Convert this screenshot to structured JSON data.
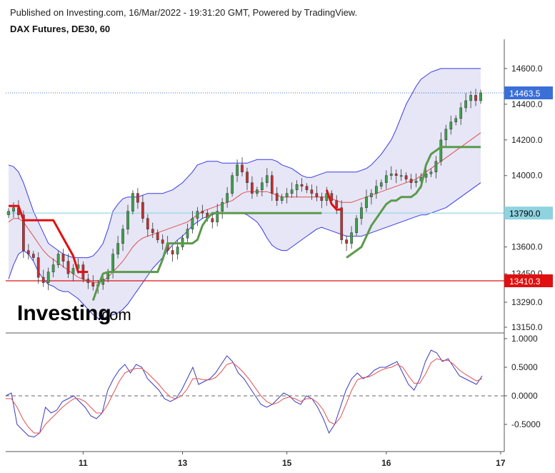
{
  "header": {
    "published": "Published on Investing.com, 16/Mar/2022 - 19:31:20 GMT, Powered by TradingView.",
    "title": "DAX Futures, DE30, 60"
  },
  "logo": {
    "text": "Investing",
    "suffix": ".com"
  },
  "colors": {
    "band_fill": "#dcdcf2",
    "band_line": "#3a3ae6",
    "ma_line": "#e05050",
    "stop_red": "#e01010",
    "stop_green": "#5a9a4a",
    "up_candle": "#3ea24a",
    "down_candle": "#c43030",
    "price_tag": "#3b6fd8",
    "level_cyan": "#8fd3e0",
    "level_red": "#e01010",
    "osc_fast": "#3a3ac0",
    "osc_slow": "#e05050"
  },
  "chart_data": [
    {
      "type": "candlestick",
      "title": "DAX Futures, DE30, 60",
      "ylim": [
        13150,
        14700
      ],
      "y_ticks": [
        "14600.0",
        "14400.0",
        "14200.0",
        "14000.0",
        "13600.0",
        "13450.0",
        "13290.0",
        "13150.0"
      ],
      "y_tick_values": [
        14600,
        14400,
        14200,
        14000,
        13600,
        13450,
        13290,
        13150
      ],
      "x_ticks": [
        "11",
        "13",
        "15",
        "16",
        "17"
      ],
      "x_tick_index": [
        15,
        35,
        56,
        76,
        99
      ],
      "n_bars": 96,
      "price_tags": [
        {
          "label": "14463.5",
          "value": 14463.5,
          "style": "last"
        },
        {
          "label": "13790.0",
          "value": 13790,
          "style": "cyan"
        },
        {
          "label": "13410.3",
          "value": 13410.3,
          "style": "red"
        }
      ],
      "closes": [
        13800,
        13820,
        13780,
        13580,
        13560,
        13540,
        13430,
        13400,
        13460,
        13500,
        13560,
        13520,
        13450,
        13480,
        13500,
        13420,
        13400,
        13380,
        13390,
        13420,
        13460,
        13560,
        13620,
        13700,
        13800,
        13900,
        13850,
        13760,
        13700,
        13680,
        13640,
        13620,
        13580,
        13560,
        13600,
        13650,
        13700,
        13760,
        13800,
        13790,
        13760,
        13740,
        13800,
        13850,
        13900,
        14000,
        14060,
        14020,
        13960,
        13900,
        13920,
        13960,
        14000,
        13900,
        13860,
        13880,
        13900,
        13920,
        13950,
        13940,
        13920,
        13900,
        13880,
        13860,
        13900,
        13860,
        13820,
        13640,
        13620,
        13680,
        13760,
        13820,
        13880,
        13900,
        13940,
        13960,
        14000,
        14010,
        14000,
        14000,
        13980,
        13960,
        13970,
        13990,
        14010,
        14020,
        14080,
        14200,
        14260,
        14300,
        14320,
        14380,
        14420,
        14450,
        14420,
        14463.5
      ],
      "series": [
        {
          "name": "",
          "kind": "band_upper",
          "values": [
            14060,
            14050,
            14020,
            13960,
            13880,
            13800,
            13740,
            13680,
            13620,
            13600,
            13580,
            13560,
            13550,
            13540,
            13540,
            13540,
            13540,
            13550,
            13580,
            13620,
            13700,
            13800,
            13840,
            13870,
            13880,
            13880,
            13880,
            13890,
            13900,
            13900,
            13900,
            13900,
            13910,
            13920,
            13940,
            13960,
            13990,
            14020,
            14060,
            14070,
            14080,
            14080,
            14080,
            14070,
            14070,
            14070,
            14070,
            14070,
            14070,
            14080,
            14090,
            14090,
            14090,
            14090,
            14080,
            14060,
            14050,
            14040,
            14020,
            14000,
            13990,
            13990,
            14000,
            14010,
            14020,
            14020,
            14020,
            14020,
            14020,
            14020,
            14020,
            14030,
            14040,
            14060,
            14090,
            14120,
            14160,
            14200,
            14260,
            14330,
            14400,
            14450,
            14500,
            14540,
            14560,
            14580,
            14590,
            14600,
            14600,
            14600,
            14600,
            14600,
            14600,
            14600,
            14600,
            14600
          ]
        },
        {
          "name": "",
          "kind": "band_lower",
          "values": [
            13420,
            13500,
            13560,
            13580,
            13560,
            13520,
            13460,
            13420,
            13390,
            13380,
            13360,
            13350,
            13350,
            13330,
            13310,
            13280,
            13250,
            13220,
            13200,
            13200,
            13210,
            13220,
            13230,
            13250,
            13280,
            13320,
            13360,
            13400,
            13440,
            13480,
            13510,
            13540,
            13580,
            13610,
            13640,
            13660,
            13690,
            13720,
            13740,
            13760,
            13770,
            13780,
            13790,
            13790,
            13790,
            13790,
            13790,
            13790,
            13780,
            13760,
            13740,
            13700,
            13650,
            13610,
            13590,
            13580,
            13580,
            13600,
            13620,
            13640,
            13660,
            13680,
            13700,
            13710,
            13700,
            13690,
            13680,
            13670,
            13660,
            13660,
            13660,
            13660,
            13670,
            13680,
            13690,
            13700,
            13710,
            13720,
            13730,
            13740,
            13750,
            13760,
            13770,
            13780,
            13780,
            13790,
            13800,
            13810,
            13820,
            13840,
            13860,
            13880,
            13900,
            13920,
            13940,
            13960
          ]
        },
        {
          "name": "",
          "kind": "ma",
          "values": [
            13740,
            13760,
            13760,
            13740,
            13700,
            13660,
            13620,
            13580,
            13550,
            13530,
            13510,
            13490,
            13470,
            13450,
            13430,
            13420,
            13410,
            13400,
            13400,
            13410,
            13430,
            13460,
            13490,
            13520,
            13560,
            13600,
            13630,
            13650,
            13660,
            13670,
            13680,
            13690,
            13700,
            13710,
            13720,
            13730,
            13740,
            13760,
            13780,
            13800,
            13810,
            13820,
            13830,
            13840,
            13850,
            13860,
            13880,
            13900,
            13910,
            13910,
            13910,
            13910,
            13910,
            13900,
            13890,
            13880,
            13880,
            13880,
            13880,
            13880,
            13880,
            13880,
            13880,
            13880,
            13880,
            13870,
            13860,
            13850,
            13850,
            13850,
            13860,
            13870,
            13880,
            13890,
            13900,
            13910,
            13920,
            13930,
            13940,
            13950,
            13960,
            13970,
            13980,
            14000,
            14020,
            14040,
            14060,
            14080,
            14100,
            14120,
            14140,
            14160,
            14180,
            14200,
            14220,
            14240
          ]
        },
        {
          "name": "",
          "kind": "stop_red",
          "values": [
            13830,
            13830,
            13830,
            13750,
            13750,
            13750,
            13750,
            13750,
            13750,
            13750,
            13700,
            13650,
            13600,
            13550,
            13460,
            13460,
            13460,
            null,
            null,
            null,
            null,
            null,
            null,
            null,
            null,
            null,
            null,
            null,
            null,
            null,
            null,
            null,
            null,
            null,
            null,
            null,
            null,
            null,
            null,
            null,
            null,
            null,
            null,
            null,
            null,
            null,
            null,
            null,
            null,
            null,
            null,
            null,
            null,
            null,
            null,
            null,
            null,
            null,
            null,
            null,
            null,
            null,
            null,
            null,
            13920,
            13840,
            13810,
            13810,
            null,
            null,
            null,
            null,
            null,
            null,
            null,
            null,
            null,
            null,
            null,
            null,
            null,
            null,
            null,
            null,
            null,
            null,
            null,
            null,
            null,
            null,
            null,
            null,
            null,
            null,
            null,
            null
          ]
        },
        {
          "name": "",
          "kind": "stop_green",
          "values": [
            null,
            null,
            null,
            null,
            null,
            null,
            null,
            null,
            null,
            null,
            null,
            null,
            null,
            null,
            null,
            null,
            null,
            13300,
            13380,
            13450,
            13460,
            13460,
            13460,
            13460,
            13460,
            13460,
            13460,
            13460,
            13460,
            13460,
            13460,
            13530,
            13620,
            13620,
            13620,
            13620,
            13620,
            13620,
            13640,
            13720,
            13760,
            13790,
            13790,
            13790,
            13790,
            13790,
            13790,
            13790,
            13790,
            13790,
            13790,
            13790,
            13790,
            13790,
            13790,
            13790,
            13790,
            13790,
            13790,
            13790,
            13790,
            13790,
            13790,
            13790,
            null,
            null,
            null,
            null,
            13540,
            13560,
            13580,
            13600,
            13660,
            13720,
            13760,
            13800,
            13840,
            13860,
            13860,
            13880,
            13880,
            13880,
            13900,
            13940,
            14060,
            14120,
            14140,
            14160,
            14160,
            14160,
            14160,
            14160,
            14160,
            14160,
            14160,
            14160
          ]
        }
      ]
    },
    {
      "type": "line",
      "ylim": [
        -1.0,
        1.0
      ],
      "y_ticks": [
        "1.0000",
        "0.5000",
        "0.0000",
        "-0.5000"
      ],
      "y_tick_values": [
        1.0,
        0.5,
        0.0,
        -0.5
      ],
      "zero_line": true,
      "series": [
        {
          "name": "",
          "kind": "osc_fast",
          "values": [
            0.0,
            0.05,
            -0.5,
            -0.6,
            -0.7,
            -0.72,
            -0.65,
            -0.2,
            -0.3,
            -0.25,
            -0.1,
            -0.05,
            0.0,
            -0.1,
            -0.2,
            -0.35,
            -0.4,
            -0.3,
            0.1,
            0.3,
            0.45,
            0.55,
            0.4,
            0.55,
            0.5,
            0.3,
            0.2,
            0.1,
            -0.05,
            -0.1,
            -0.05,
            0.1,
            0.3,
            0.5,
            0.2,
            0.25,
            0.3,
            0.4,
            0.55,
            0.7,
            0.6,
            0.4,
            0.3,
            0.15,
            0.0,
            -0.15,
            -0.2,
            -0.15,
            -0.05,
            0.05,
            0.0,
            -0.1,
            -0.15,
            0.0,
            -0.05,
            -0.2,
            -0.4,
            -0.65,
            -0.5,
            -0.2,
            0.1,
            0.3,
            0.4,
            0.3,
            0.35,
            0.45,
            0.5,
            0.5,
            0.55,
            0.6,
            0.4,
            0.2,
            0.1,
            0.3,
            0.6,
            0.8,
            0.75,
            0.6,
            0.65,
            0.5,
            0.35,
            0.3,
            0.25,
            0.2,
            0.35
          ]
        },
        {
          "name": "",
          "kind": "osc_slow",
          "values": [
            -0.05,
            -0.05,
            -0.2,
            -0.4,
            -0.55,
            -0.65,
            -0.65,
            -0.5,
            -0.4,
            -0.3,
            -0.2,
            -0.12,
            -0.05,
            -0.05,
            -0.1,
            -0.2,
            -0.3,
            -0.3,
            -0.15,
            0.05,
            0.25,
            0.4,
            0.45,
            0.48,
            0.48,
            0.4,
            0.3,
            0.2,
            0.08,
            -0.02,
            -0.05,
            0.0,
            0.12,
            0.3,
            0.3,
            0.28,
            0.28,
            0.32,
            0.42,
            0.55,
            0.58,
            0.5,
            0.4,
            0.28,
            0.14,
            0.0,
            -0.1,
            -0.15,
            -0.12,
            -0.05,
            -0.02,
            -0.05,
            -0.1,
            -0.05,
            -0.05,
            -0.12,
            -0.25,
            -0.45,
            -0.5,
            -0.38,
            -0.15,
            0.1,
            0.28,
            0.32,
            0.33,
            0.38,
            0.44,
            0.48,
            0.5,
            0.55,
            0.5,
            0.35,
            0.22,
            0.22,
            0.38,
            0.58,
            0.65,
            0.62,
            0.62,
            0.55,
            0.45,
            0.38,
            0.32,
            0.26,
            0.3
          ]
        }
      ]
    }
  ]
}
